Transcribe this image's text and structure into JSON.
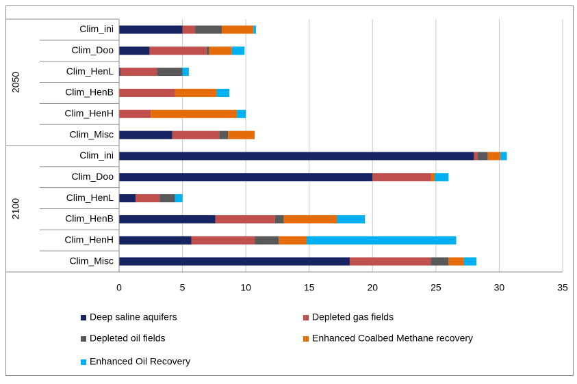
{
  "chart_data": {
    "type": "stacked-bar-horizontal",
    "groups": [
      {
        "name": "2050",
        "categories": [
          "Clim_ini",
          "Clim_Doo",
          "Clim_HenL",
          "Clim_HenB",
          "Clim_HenH",
          "Clim_Misc"
        ]
      },
      {
        "name": "2100",
        "categories": [
          "Clim_ini",
          "Clim_Doo",
          "Clim_HenL",
          "Clim_HenB",
          "Clim_HenH",
          "Clim_Misc"
        ]
      }
    ],
    "series": [
      {
        "name": "Deep saline aquifers",
        "color": "#172462",
        "values": [
          5.0,
          2.4,
          0.1,
          0,
          0,
          4.2,
          28.0,
          20.0,
          1.3,
          7.6,
          5.7,
          18.2
        ]
      },
      {
        "name": "Depleted gas fields",
        "color": "#c0504d",
        "values": [
          1.0,
          4.5,
          2.9,
          4.4,
          2.5,
          3.7,
          0.3,
          4.6,
          1.9,
          4.7,
          5.0,
          6.4
        ]
      },
      {
        "name": "Depleted oil fields",
        "color": "#595959",
        "values": [
          2.1,
          0.2,
          2.0,
          0,
          0,
          0.7,
          0.8,
          0,
          1.2,
          0.7,
          1.9,
          1.4
        ]
      },
      {
        "name": "Enhanced Coalbed Methane recovery",
        "color": "#e46c0a",
        "values": [
          2.5,
          1.8,
          0,
          3.3,
          6.8,
          2.1,
          1.0,
          0.3,
          0,
          4.2,
          2.2,
          1.2
        ]
      },
      {
        "name": "Enhanced Oil Recovery",
        "color": "#00b0f0",
        "values": [
          0.2,
          1.0,
          0.5,
          1.0,
          0.7,
          0,
          0.5,
          1.1,
          0.6,
          2.2,
          11.8,
          1.0
        ]
      }
    ],
    "xlim": [
      0,
      35
    ],
    "xticks": [
      0,
      5,
      10,
      15,
      20,
      25,
      30,
      35
    ],
    "grid": true,
    "legend": "bottom"
  }
}
